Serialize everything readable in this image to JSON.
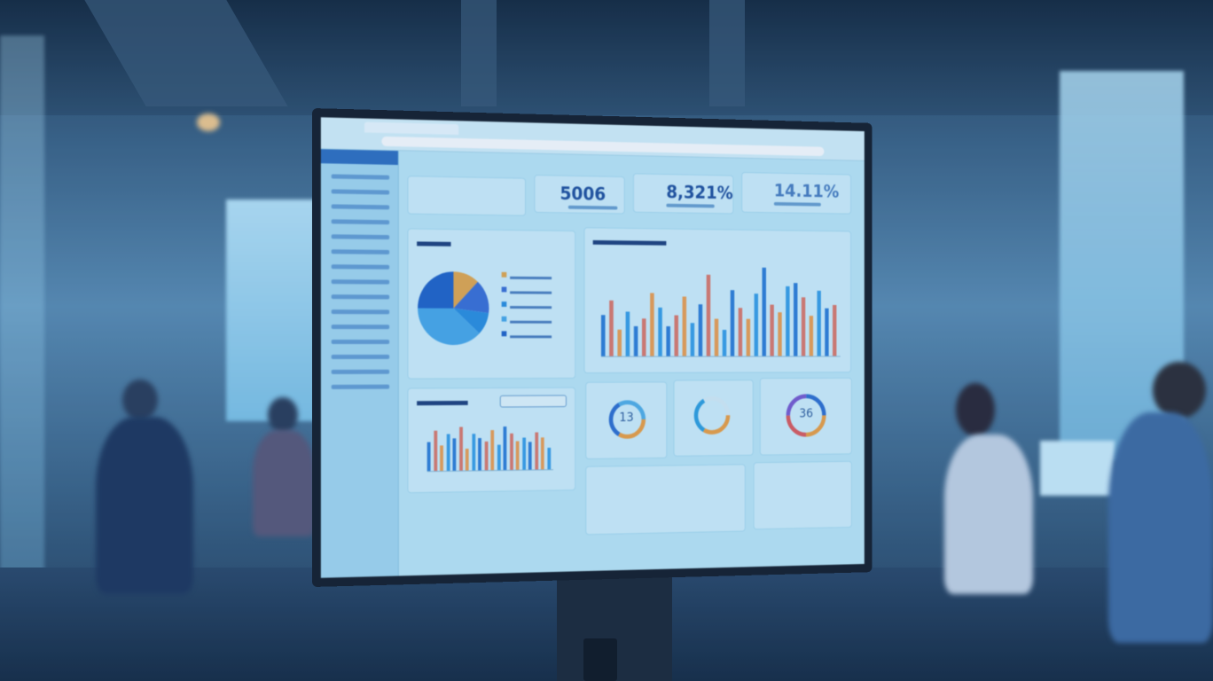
{
  "dashboard": {
    "kpis": [
      {
        "value": "5006"
      },
      {
        "value": "8,321%"
      },
      {
        "value": "14.11%"
      }
    ],
    "donuts": [
      {
        "value": "13",
        "colors": [
          "#f0a040",
          "#2f6fd0",
          "#53b0e8"
        ]
      },
      {
        "value": "",
        "colors": [
          "#f0a040",
          "#2fa0e0",
          "#d9eef8"
        ]
      },
      {
        "value": "36",
        "colors": [
          "#f0a040",
          "#e05a5a",
          "#7a5ad0",
          "#2f6fd0"
        ]
      }
    ],
    "pie": {
      "slices": [
        0.12,
        0.15,
        0.1,
        0.38,
        0.25
      ],
      "colors": [
        "#e6a84a",
        "#3b6fd6",
        "#2b8fe0",
        "#49a9ea",
        "#2062c8"
      ]
    },
    "bar_chart": {
      "colors": [
        "#2f7fd8",
        "#e07a6a",
        "#f0a050",
        "#3aa0e8"
      ],
      "values": [
        55,
        75,
        35,
        60,
        40,
        50,
        85,
        65,
        40,
        55,
        80,
        45,
        70,
        110,
        50,
        35,
        90,
        65,
        50,
        85,
        120,
        70,
        60,
        95,
        100,
        80,
        55,
        90,
        65,
        70
      ]
    },
    "mini_bar_chart": {
      "values": [
        40,
        55,
        35,
        50,
        45,
        60,
        30,
        50,
        45,
        40,
        55,
        35,
        60,
        50,
        40,
        45,
        38,
        52,
        44,
        30
      ]
    },
    "accent": "#2f6fc0"
  }
}
